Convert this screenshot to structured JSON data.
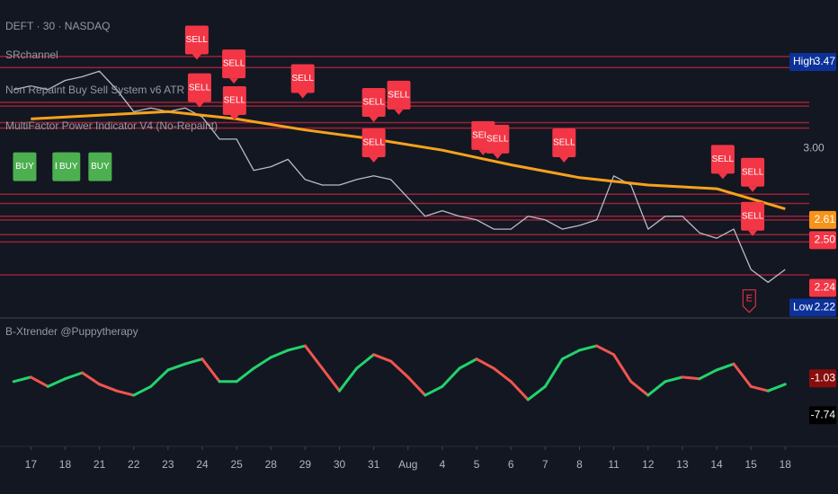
{
  "header": {
    "title": "DEFT · 30 · NASDAQ",
    "indicators": [
      "SRchannel",
      "Non Repaint Buy Sell System v6 ATR",
      "MultiFactor Power Indicator V4 (No-Repaint)"
    ]
  },
  "chart_data": [
    {
      "type": "line",
      "xlim": [
        -0.9,
        22.7
      ],
      "ylim": [
        2.12,
        3.71
      ],
      "yticks": [
        {
          "value": 3,
          "label": "3.00"
        }
      ],
      "series": [
        {
          "color": "#b8bcc6",
          "x": [
            -0.5,
            0,
            0.5,
            1,
            1.5,
            2,
            2.5,
            3,
            3.5,
            4,
            4.5,
            5,
            5.5,
            6,
            6.5,
            7,
            7.5,
            8,
            8.5,
            9,
            9.5,
            10,
            10.5,
            11,
            11.5,
            12,
            12.5,
            13,
            13.5,
            14,
            14.5,
            15,
            15.5,
            16,
            16.5,
            17,
            17.5,
            18,
            18.5,
            19,
            19.5,
            20,
            20.5,
            21,
            21.5,
            22
          ],
          "values": [
            3.32,
            3.34,
            3.32,
            3.37,
            3.39,
            3.42,
            3.32,
            3.2,
            3.22,
            3.2,
            3.22,
            3.17,
            3.05,
            3.05,
            2.88,
            2.9,
            2.94,
            2.83,
            2.8,
            2.8,
            2.83,
            2.85,
            2.83,
            2.73,
            2.63,
            2.66,
            2.63,
            2.61,
            2.56,
            2.56,
            2.63,
            2.61,
            2.56,
            2.58,
            2.61,
            2.85,
            2.8,
            2.56,
            2.63,
            2.63,
            2.54,
            2.51,
            2.56,
            2.34,
            2.27,
            2.34
          ]
        },
        {
          "color": "#f7a21b",
          "x": [
            0,
            2,
            4,
            6,
            8,
            10,
            12,
            14,
            16,
            18,
            20,
            22
          ],
          "values": [
            3.16,
            3.18,
            3.2,
            3.16,
            3.1,
            3.05,
            2.99,
            2.91,
            2.84,
            2.8,
            2.78,
            2.67
          ]
        }
      ],
      "sr_color": "#b2243a",
      "sr_levels": [
        3.5,
        3.44,
        3.25,
        3.23,
        3.14,
        3.11,
        2.75,
        2.7,
        2.63,
        2.61,
        2.53,
        2.49,
        2.31
      ],
      "signals": [
        {
          "text": "SELL",
          "x": 4.84,
          "y": 3.59,
          "color": "#f23645"
        },
        {
          "text": "SELL",
          "x": 5.92,
          "y": 3.46,
          "color": "#f23645"
        },
        {
          "text": "SELL",
          "x": 4.92,
          "y": 3.33,
          "color": "#f23645"
        },
        {
          "text": "SELL",
          "x": 5.94,
          "y": 3.26,
          "color": "#f23645"
        },
        {
          "text": "SELL",
          "x": 7.93,
          "y": 3.38,
          "color": "#f23645"
        },
        {
          "text": "SELL",
          "x": 10.0,
          "y": 3.25,
          "color": "#f23645"
        },
        {
          "text": "SELL",
          "x": 10.73,
          "y": 3.29,
          "color": "#f23645"
        },
        {
          "text": "SELL",
          "x": 10.0,
          "y": 3.03,
          "color": "#f23645"
        },
        {
          "text": "SELL",
          "x": 13.19,
          "y": 3.07,
          "color": "#f23645"
        },
        {
          "text": "SELL",
          "x": 13.61,
          "y": 3.05,
          "color": "#f23645"
        },
        {
          "text": "SELL",
          "x": 15.55,
          "y": 3.03,
          "color": "#f23645"
        },
        {
          "text": "SELL",
          "x": 20.18,
          "y": 2.94,
          "color": "#f23645"
        },
        {
          "text": "SELL",
          "x": 21.05,
          "y": 2.87,
          "color": "#f23645"
        },
        {
          "text": "SELL",
          "x": 21.05,
          "y": 2.63,
          "color": "#f23645"
        },
        {
          "text": "BUY",
          "x": -0.18,
          "y": 2.9,
          "color": "#4caf50"
        },
        {
          "text": "BUY",
          "x": 0.97,
          "y": 2.9,
          "color": "#4caf50"
        },
        {
          "text": "BUY",
          "x": 1.1,
          "y": 2.9,
          "color": "#4caf50"
        },
        {
          "text": "BUY",
          "x": 2.02,
          "y": 2.9,
          "color": "#4caf50"
        }
      ],
      "price_labels": [
        {
          "tag": "High",
          "value": 3.47,
          "color": "#0c3299"
        },
        {
          "value": 2.61,
          "color": "#f7931a"
        },
        {
          "value": 2.5,
          "label": "2.50",
          "color": "#f23645"
        },
        {
          "value": 2.24,
          "color": "#f23645"
        },
        {
          "tag": "Low",
          "value": 2.22,
          "color": "#0c3299"
        }
      ],
      "earnings": {
        "text": "E",
        "x": 20.95,
        "y": 2.17
      }
    },
    {
      "type": "oscillator",
      "title": "B-Xtrender @Puppytherapy",
      "xlim": [
        -0.9,
        22.7
      ],
      "ylim": [
        -12.6,
        9
      ],
      "xticks": [
        {
          "value": 0,
          "label": "17"
        },
        {
          "value": 1,
          "label": "18"
        },
        {
          "value": 2,
          "label": "21"
        },
        {
          "value": 3,
          "label": "22"
        },
        {
          "value": 4,
          "label": "23"
        },
        {
          "value": 5,
          "label": "24"
        },
        {
          "value": 6,
          "label": "25"
        },
        {
          "value": 7,
          "label": "28"
        },
        {
          "value": 8,
          "label": "29"
        },
        {
          "value": 9,
          "label": "30"
        },
        {
          "value": 10,
          "label": "31"
        },
        {
          "value": 11,
          "label": "Aug"
        },
        {
          "value": 12,
          "label": "4"
        },
        {
          "value": 13,
          "label": "5"
        },
        {
          "value": 14,
          "label": "6"
        },
        {
          "value": 15,
          "label": "7"
        },
        {
          "value": 16,
          "label": "8"
        },
        {
          "value": 17,
          "label": "11"
        },
        {
          "value": 18,
          "label": "12"
        },
        {
          "value": 19,
          "label": "13"
        },
        {
          "value": 20,
          "label": "14"
        },
        {
          "value": 21,
          "label": "15"
        },
        {
          "value": 22,
          "label": "18"
        }
      ],
      "series": [
        {
          "up_color": "#22d36c",
          "down_color": "#f0554f",
          "x": [
            -0.5,
            0,
            0.5,
            1,
            1.5,
            2,
            2.5,
            3,
            3.5,
            4,
            4.5,
            5,
            5.5,
            6,
            6.5,
            7,
            7.5,
            8,
            8.5,
            9,
            9.5,
            10,
            10.5,
            11,
            11.5,
            12,
            12.5,
            13,
            13.5,
            14,
            14.5,
            15,
            15.5,
            16,
            16.5,
            17,
            17.5,
            18,
            18.5,
            19,
            19.5,
            20,
            20.5,
            21,
            21.5,
            22
          ],
          "values": [
            -1.6,
            -0.8,
            -2.5,
            -1.1,
            0,
            -2.1,
            -3.3,
            -4.1,
            -2.5,
            0.5,
            1.6,
            2.5,
            -1.6,
            -1.6,
            0.8,
            2.8,
            4.1,
            4.9,
            0.8,
            -3.3,
            0.8,
            3.3,
            2.1,
            -0.8,
            -4.1,
            -2.5,
            0.8,
            2.5,
            0.8,
            -1.6,
            -4.9,
            -2.5,
            2.5,
            4.1,
            4.9,
            3.3,
            -1.6,
            -4.1,
            -1.6,
            -0.8,
            -1.1,
            0.5,
            1.6,
            -2.5,
            -3.3,
            -2.1
          ]
        }
      ],
      "price_labels": [
        {
          "value": -1.03,
          "color": "#880e0e"
        },
        {
          "value": -7.74,
          "color": "#000000"
        }
      ]
    }
  ]
}
